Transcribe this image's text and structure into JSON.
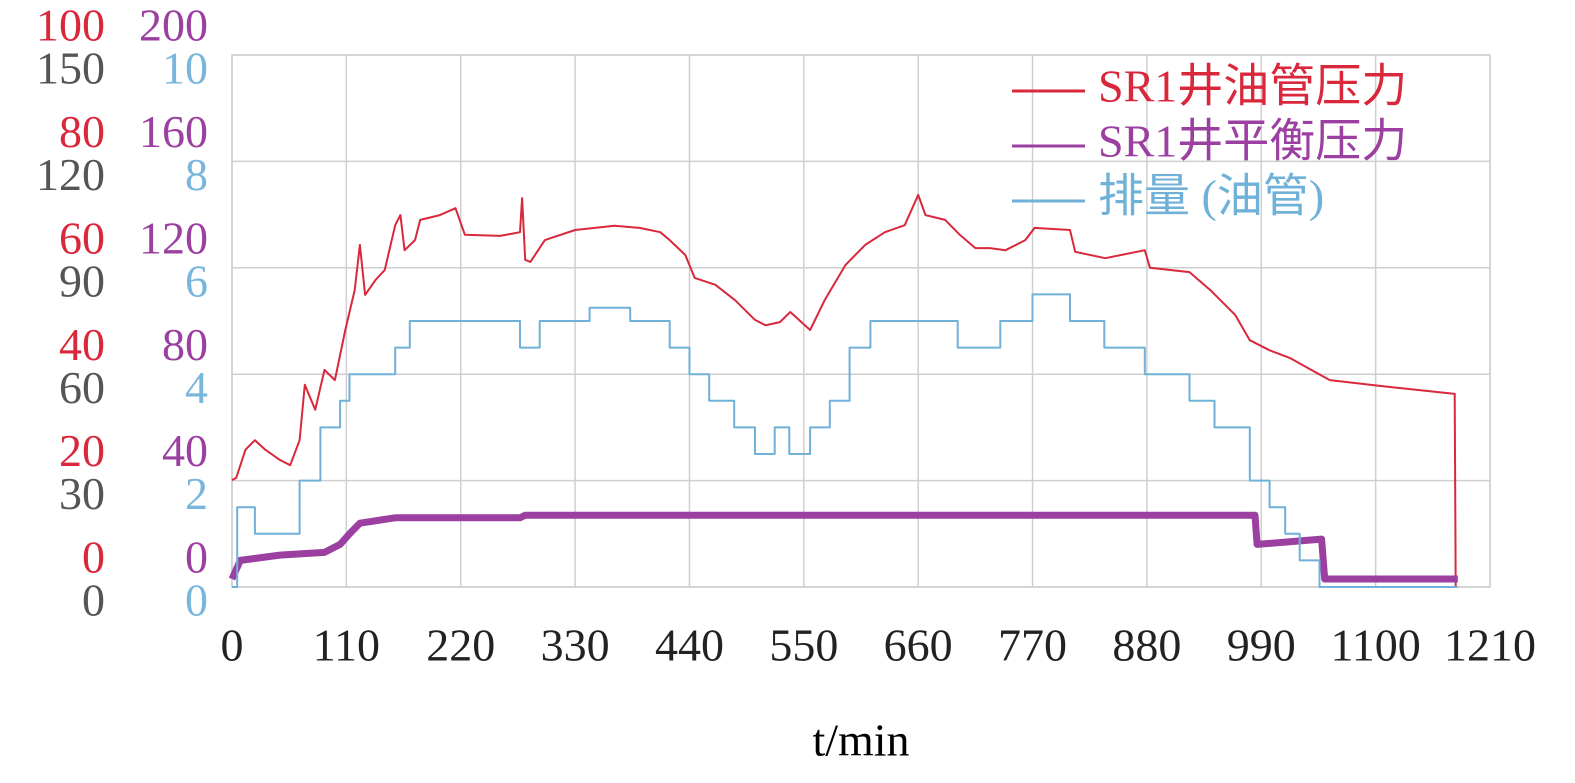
{
  "chart_data": {
    "type": "line",
    "xlabel": "t/min",
    "xlim": [
      0,
      1210
    ],
    "xticks": [
      0,
      110,
      220,
      330,
      440,
      550,
      660,
      770,
      880,
      990,
      1100,
      1210
    ],
    "ylim": [
      0,
      100
    ],
    "yticks": [
      0,
      20,
      40,
      60,
      80,
      100
    ],
    "y_color": "#d9283c",
    "y2lim": [
      0,
      200
    ],
    "y2ticks": [
      0,
      40,
      80,
      120,
      160,
      200
    ],
    "y2_color": "#9b3fa0",
    "y3lim": [
      0,
      150
    ],
    "y3ticks": [
      0,
      30,
      60,
      90,
      120,
      150
    ],
    "y3_color": "#555555",
    "y4lim": [
      0,
      10
    ],
    "y4ticks": [
      0,
      2,
      4,
      6,
      8,
      10
    ],
    "y4_color": "#7ab6dc",
    "grid": true,
    "legend": "upper right",
    "series": [
      {
        "name": "SR1井油管压力",
        "color": "#d9283c",
        "axis": "y",
        "x": [
          0,
          4,
          13,
          22,
          32,
          46,
          56,
          65,
          70,
          80,
          89,
          99,
          109,
          118,
          123,
          128,
          138,
          147,
          157,
          162,
          166,
          176,
          181,
          200,
          215,
          224,
          258,
          277,
          279,
          282,
          287,
          301,
          330,
          368,
          392,
          412,
          421,
          436,
          445,
          465,
          484,
          503,
          513,
          527,
          537,
          556,
          570,
          590,
          609,
          628,
          647,
          660,
          667,
          686,
          700,
          715,
          729,
          744,
          763,
          772,
          806,
          811,
          840,
          878,
          883,
          921,
          941,
          965,
          979,
          998,
          1018,
          1042,
          1056,
          1104,
          1176,
          1177
        ],
        "values": [
          20.1,
          20.5,
          25.8,
          27.6,
          25.8,
          23.9,
          22.9,
          27.6,
          38.0,
          33.3,
          40.8,
          38.9,
          48.3,
          55.8,
          64.3,
          54.9,
          57.7,
          59.6,
          68.0,
          69.9,
          63.3,
          65.2,
          69.0,
          69.9,
          71.2,
          66.2,
          66.0,
          66.7,
          73.1,
          61.5,
          61.1,
          65.2,
          67.1,
          67.9,
          67.5,
          66.7,
          65.2,
          62.4,
          58.1,
          56.8,
          53.9,
          50.2,
          49.2,
          49.8,
          51.7,
          48.3,
          53.9,
          60.5,
          64.3,
          66.7,
          68.0,
          73.7,
          69.9,
          69.0,
          66.2,
          63.7,
          63.7,
          63.3,
          65.2,
          67.5,
          67.1,
          63.0,
          61.8,
          63.3,
          60.0,
          59.2,
          55.8,
          51.1,
          46.4,
          44.5,
          43.0,
          40.4,
          38.9,
          37.8,
          36.3,
          0
        ]
      },
      {
        "name": "SR1井平衡压力",
        "color": "#9b3fa0",
        "axis": "y2",
        "x": [
          0,
          8,
          46,
          89,
          104,
          113,
          123,
          157,
          277,
          282,
          984,
          986,
          1048,
          1051,
          1179
        ],
        "values": [
          3,
          10,
          12,
          13,
          16,
          20,
          24,
          26,
          26,
          27,
          27,
          16,
          18,
          3,
          3
        ]
      },
      {
        "name": "排量 (油管)",
        "color": "#6fb1d8",
        "axis": "y4",
        "x": [
          0,
          5,
          5,
          22,
          22,
          65,
          65,
          85,
          85,
          104,
          104,
          113,
          113,
          157,
          157,
          171,
          171,
          277,
          277,
          296,
          296,
          344,
          344,
          383,
          383,
          421,
          421,
          440,
          440,
          459,
          459,
          483,
          483,
          503,
          503,
          522,
          522,
          536,
          536,
          556,
          556,
          575,
          575,
          594,
          594,
          614,
          614,
          698,
          698,
          739,
          739,
          770,
          770,
          806,
          806,
          839,
          839,
          878,
          878,
          921,
          921,
          945,
          945,
          979,
          979,
          998,
          998,
          1013,
          1013,
          1027,
          1027,
          1046,
          1046,
          1179
        ],
        "values": [
          0,
          0,
          1.5,
          1.5,
          1.0,
          1.0,
          2.0,
          2.0,
          3.0,
          3.0,
          3.5,
          3.5,
          4.0,
          4.0,
          4.5,
          4.5,
          5.0,
          5.0,
          4.5,
          4.5,
          5.0,
          5.0,
          5.25,
          5.25,
          5.0,
          5.0,
          4.5,
          4.5,
          4.0,
          4.0,
          3.5,
          3.5,
          3.0,
          3.0,
          2.5,
          2.5,
          3.0,
          3.0,
          2.5,
          2.5,
          3.0,
          3.0,
          3.5,
          3.5,
          4.5,
          4.5,
          5.0,
          5.0,
          4.5,
          4.5,
          5.0,
          5.0,
          5.5,
          5.5,
          5.0,
          5.0,
          4.5,
          4.5,
          4.0,
          4.0,
          3.5,
          3.5,
          3.0,
          3.0,
          2.0,
          2.0,
          1.5,
          1.5,
          1.0,
          1.0,
          0.5,
          0.5,
          0,
          0
        ]
      }
    ]
  }
}
